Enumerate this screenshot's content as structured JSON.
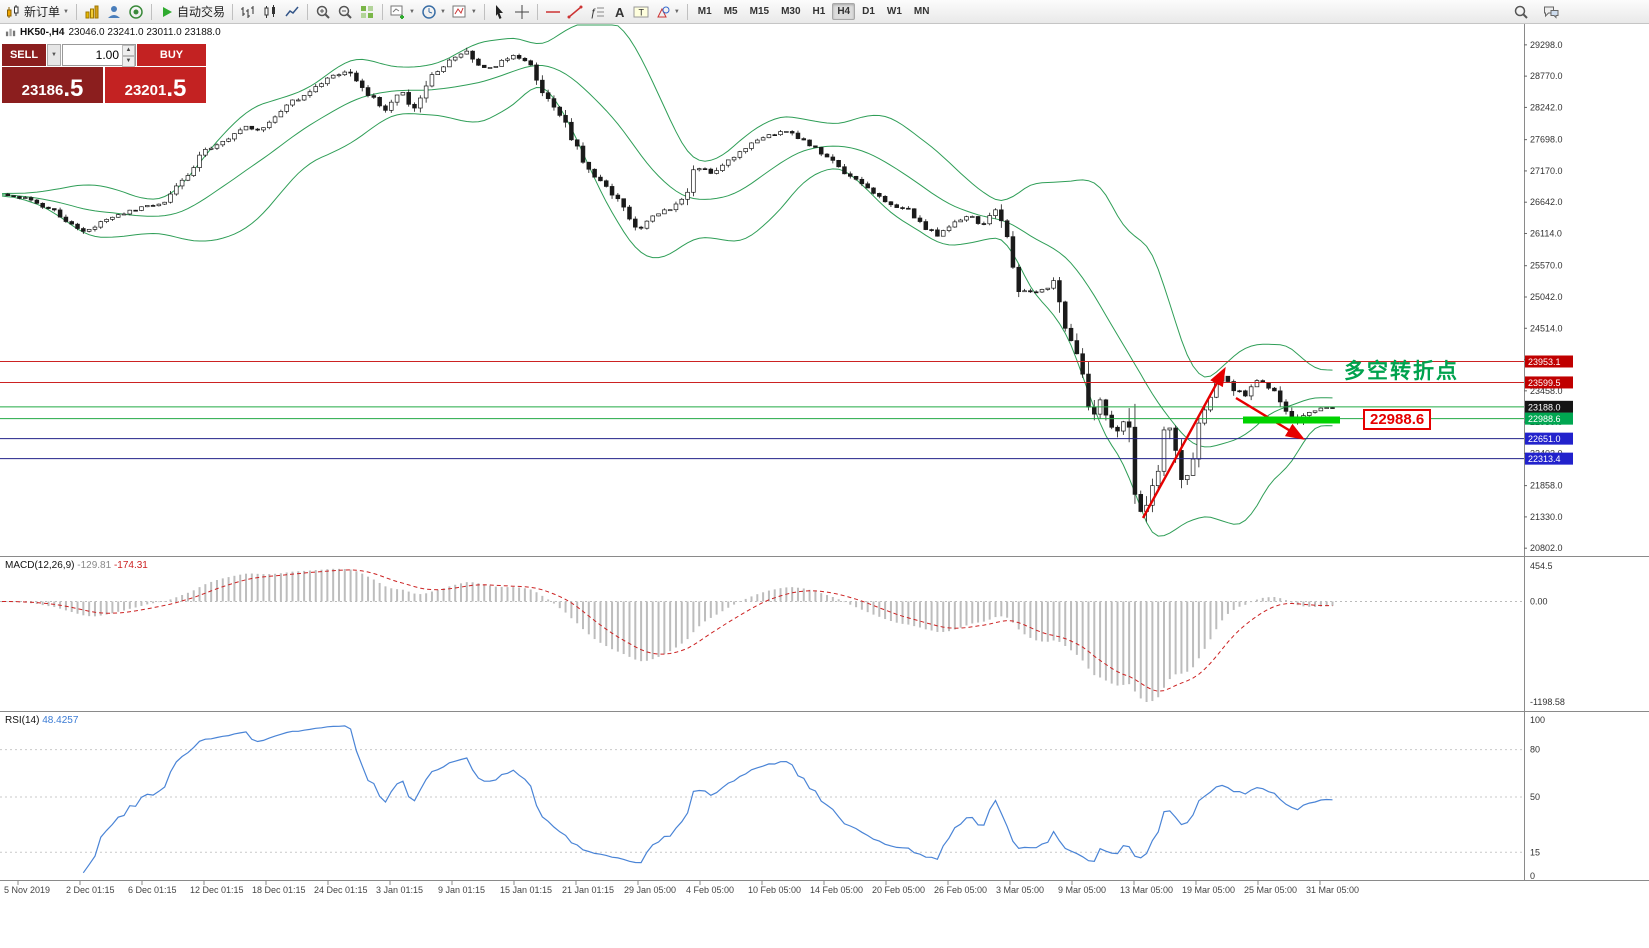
{
  "toolbar": {
    "items": [
      {
        "name": "new-order-button",
        "icon": "new-order",
        "label": "新订单",
        "dd": true
      },
      {
        "sep": true
      },
      {
        "name": "market-watch-button",
        "icon": "market-watch"
      },
      {
        "name": "navigator-button",
        "icon": "navigator"
      },
      {
        "name": "data-center-button",
        "icon": "data-center"
      },
      {
        "sep": true
      },
      {
        "name": "auto-trading-button",
        "icon": "autotrading",
        "label": "自动交易"
      },
      {
        "sep": true
      },
      {
        "name": "bar-chart-mode-button",
        "icon": "bars-chart"
      },
      {
        "name": "candle-chart-mode-button",
        "icon": "candles-chart"
      },
      {
        "name": "line-chart-mode-button",
        "icon": "line-chart"
      },
      {
        "sep": true
      },
      {
        "name": "zoom-in-button",
        "icon": "zoom-in"
      },
      {
        "name": "zoom-out-button",
        "icon": "zoom-out"
      },
      {
        "name": "tile-windows-button",
        "icon": "tile-grid"
      },
      {
        "sep": true
      },
      {
        "name": "new-chart-button",
        "icon": "new-chart",
        "dd": true
      },
      {
        "name": "periods-button",
        "icon": "clock",
        "dd": true
      },
      {
        "name": "indicators-button",
        "icon": "indicators",
        "dd": true
      },
      {
        "sep": true
      },
      {
        "name": "cursor-tool-button",
        "icon": "cursor"
      },
      {
        "name": "crosshair-tool-button",
        "icon": "crosshair"
      },
      {
        "sep": true
      },
      {
        "name": "horizontal-line-tool-button",
        "icon": "hline"
      },
      {
        "name": "trendline-tool-button",
        "icon": "trendline"
      },
      {
        "name": "fibonacci-tool-button",
        "icon": "fibonacci"
      },
      {
        "name": "text-tool-button",
        "icon": "text-a"
      },
      {
        "name": "label-tool-button",
        "icon": "text-label"
      },
      {
        "name": "shapes-tool-button",
        "icon": "shapes",
        "dd": true
      },
      {
        "sep": true
      }
    ],
    "timeframes": {
      "items": [
        "M1",
        "M5",
        "M15",
        "M30",
        "H1",
        "H4",
        "D1",
        "W1",
        "MN"
      ],
      "active": "H4"
    },
    "right_items": [
      {
        "name": "search-button",
        "icon": "search"
      },
      {
        "name": "chat-button",
        "icon": "chat"
      }
    ]
  },
  "chart": {
    "symbol": "HK50-,H4",
    "ohlc": "23046.0 23241.0 23011.0 23188.0",
    "trade_panel": {
      "sell_label": "SELL",
      "buy_label": "BUY",
      "volume": "1.00",
      "sell_price_main": "23186",
      "sell_price_frac": ".5",
      "buy_price_main": "23201",
      "buy_price_frac": ".5",
      "sell_color": "#8b1e1e",
      "buy_color": "#c32222"
    },
    "annotation_text": "多空转折点",
    "price_flag_label": "22988.6"
  },
  "macd_panel": {
    "label": "MACD(12,26,9)",
    "value_main": "-129.81",
    "value_signal": "-174.31",
    "axis": [
      "454.5",
      "0.00",
      "-1198.58"
    ]
  },
  "rsi_panel": {
    "label": "RSI(14)",
    "value": "48.4257",
    "axis": [
      "100",
      "80",
      "50",
      "15",
      "0"
    ]
  },
  "chart_data": {
    "type": "candlestick",
    "symbol": "HK50-",
    "timeframe": "H4",
    "ohlc_current": {
      "open": 23046.0,
      "high": 23241.0,
      "low": 23011.0,
      "close": 23188.0
    },
    "ylim": [
      20670,
      29650
    ],
    "price_axis_ticks": [
      29298.0,
      28770.0,
      28242.0,
      27698.0,
      27170.0,
      26642.0,
      26114.0,
      25570.0,
      25042.0,
      24514.0,
      23986.0,
      23458.0,
      22930.0,
      22402.0,
      21858.0,
      21330.0,
      20802.0
    ],
    "time_axis_labels": [
      "5 Nov 2019",
      "2 Dec 01:15",
      "6 Dec 01:15",
      "12 Dec 01:15",
      "18 Dec 01:15",
      "24 Dec 01:15",
      "3 Jan 01:15",
      "9 Jan 01:15",
      "15 Jan 01:15",
      "21 Jan 01:15",
      "29 Jan 05:00",
      "4 Feb 05:00",
      "10 Feb 05:00",
      "14 Feb 05:00",
      "20 Feb 05:00",
      "26 Feb 05:00",
      "3 Mar 05:00",
      "9 Mar 05:00",
      "13 Mar 05:00",
      "19 Mar 05:00",
      "25 Mar 05:00",
      "31 Mar 05:00"
    ],
    "levels": [
      {
        "price": 23953.1,
        "line": "#cc2222",
        "label_bg": "#c00000"
      },
      {
        "price": 23599.5,
        "line": "#cc2222",
        "label_bg": "#c00000"
      },
      {
        "price": 23188.0,
        "line": "#22aa44",
        "label_bg": "#151515",
        "current": true
      },
      {
        "price": 22988.6,
        "line": "#22aa44",
        "label_bg": "#00a651"
      },
      {
        "price": 22651.0,
        "line": "#22228a",
        "label_bg": "#2222cc"
      },
      {
        "price": 22313.4,
        "line": "#22228a",
        "label_bg": "#2222cc"
      }
    ],
    "bollinger": {
      "period": 20,
      "deviation": 2,
      "color": "#2f9e57"
    },
    "macd": {
      "fast": 12,
      "slow": 26,
      "signal": 9,
      "hist_color": "#bdbdbd",
      "signal_color": "#cc2222",
      "axis_max": 454.5,
      "axis_min": -1198.58
    },
    "rsi": {
      "period": 14,
      "color": "#4a84d6",
      "levels": [
        80,
        50,
        15
      ],
      "range": [
        0,
        100
      ]
    },
    "candle_spacing": 5.81,
    "price_path": [
      [
        2,
        26780
      ],
      [
        25,
        26700
      ],
      [
        55,
        26480
      ],
      [
        85,
        26120
      ],
      [
        110,
        26380
      ],
      [
        140,
        26540
      ],
      [
        165,
        26650
      ],
      [
        185,
        27050
      ],
      [
        205,
        27520
      ],
      [
        225,
        27700
      ],
      [
        245,
        27920
      ],
      [
        262,
        27850
      ],
      [
        285,
        28270
      ],
      [
        305,
        28450
      ],
      [
        325,
        28700
      ],
      [
        348,
        28890
      ],
      [
        368,
        28460
      ],
      [
        385,
        28230
      ],
      [
        400,
        28530
      ],
      [
        412,
        28100
      ],
      [
        430,
        28780
      ],
      [
        450,
        29040
      ],
      [
        465,
        29200
      ],
      [
        480,
        28880
      ],
      [
        497,
        28960
      ],
      [
        512,
        29120
      ],
      [
        527,
        29030
      ],
      [
        543,
        28520
      ],
      [
        558,
        28190
      ],
      [
        572,
        27700
      ],
      [
        590,
        27180
      ],
      [
        606,
        26930
      ],
      [
        622,
        26580
      ],
      [
        637,
        26170
      ],
      [
        652,
        26420
      ],
      [
        668,
        26520
      ],
      [
        683,
        26700
      ],
      [
        697,
        27260
      ],
      [
        712,
        27100
      ],
      [
        727,
        27350
      ],
      [
        742,
        27520
      ],
      [
        757,
        27690
      ],
      [
        772,
        27780
      ],
      [
        787,
        27860
      ],
      [
        802,
        27690
      ],
      [
        817,
        27520
      ],
      [
        832,
        27350
      ],
      [
        847,
        27100
      ],
      [
        862,
        26930
      ],
      [
        877,
        26760
      ],
      [
        892,
        26590
      ],
      [
        907,
        26510
      ],
      [
        922,
        26250
      ],
      [
        937,
        26090
      ],
      [
        952,
        26260
      ],
      [
        967,
        26430
      ],
      [
        982,
        26260
      ],
      [
        997,
        26510
      ],
      [
        1007,
        26000
      ],
      [
        1019,
        25240
      ],
      [
        1032,
        25080
      ],
      [
        1044,
        25160
      ],
      [
        1054,
        25330
      ],
      [
        1064,
        24480
      ],
      [
        1074,
        24140
      ],
      [
        1084,
        23640
      ],
      [
        1092,
        22960
      ],
      [
        1099,
        23300
      ],
      [
        1107,
        22960
      ],
      [
        1116,
        22620
      ],
      [
        1126,
        23060
      ],
      [
        1135,
        21600
      ],
      [
        1144,
        21350
      ],
      [
        1152,
        21900
      ],
      [
        1160,
        22300
      ],
      [
        1167,
        23080
      ],
      [
        1175,
        22560
      ],
      [
        1184,
        21800
      ],
      [
        1192,
        22300
      ],
      [
        1200,
        22900
      ],
      [
        1208,
        23300
      ],
      [
        1217,
        23600
      ],
      [
        1226,
        23740
      ],
      [
        1234,
        23480
      ],
      [
        1246,
        23390
      ],
      [
        1256,
        23640
      ],
      [
        1266,
        23560
      ],
      [
        1276,
        23390
      ],
      [
        1286,
        23130
      ],
      [
        1296,
        22880
      ],
      [
        1306,
        23050
      ],
      [
        1316,
        23130
      ],
      [
        1326,
        23170
      ],
      [
        1338,
        23188
      ]
    ],
    "annotations": {
      "trend_arrows": [
        {
          "from": [
            1143,
            494
          ],
          "to": [
            1224,
            346
          ]
        },
        {
          "from": [
            1236,
            374
          ],
          "to": [
            1302,
            414
          ]
        }
      ],
      "arrow_color": "#e60000",
      "highlight_segment": {
        "from": [
          1243,
          396
        ],
        "to": [
          1340,
          396
        ],
        "color": "#00d300",
        "width": 7
      },
      "text_color": "#00a24e",
      "flag_color": "#e60000"
    }
  }
}
